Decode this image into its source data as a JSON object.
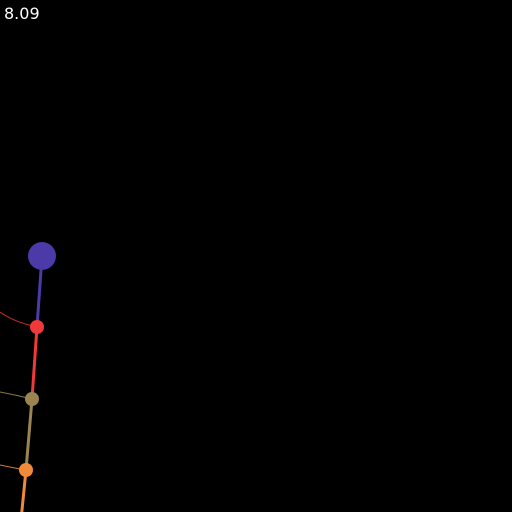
{
  "readout": {
    "value": "8.09"
  },
  "colors": {
    "background": "#000000",
    "readout_text": "#ffffff",
    "bob_1": "#4b3aa8",
    "rod_1": "#4b3aa8",
    "bob_2": "#f03a3a",
    "rod_2": "#f03a3a",
    "trail_2": "#e23030",
    "bob_3": "#9a8450",
    "rod_3": "#9a8450",
    "trail_3": "#9a8450",
    "bob_4": "#f08a3a",
    "rod_4": "#f08a3a",
    "trail_4": "#f08a3a"
  }
}
